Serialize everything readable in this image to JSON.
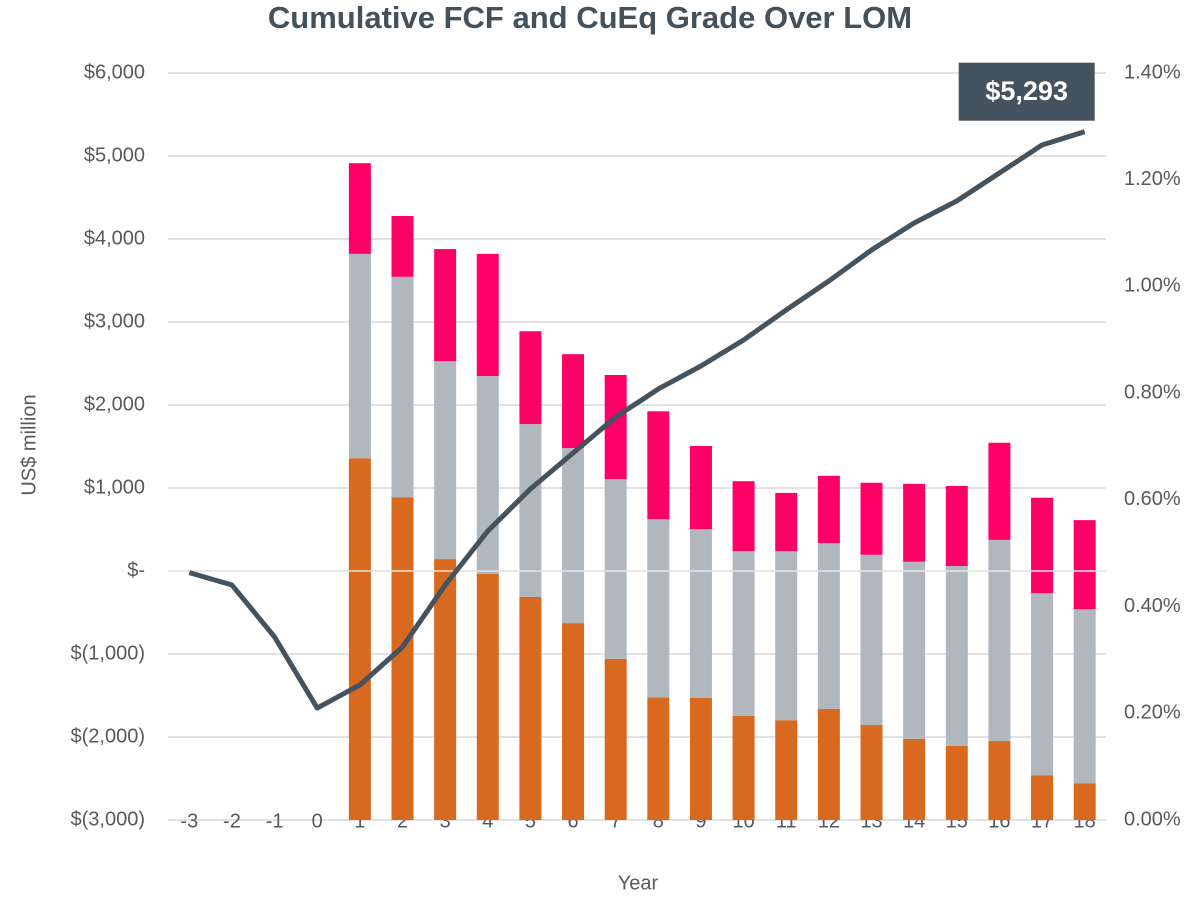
{
  "chart_data": {
    "type": "bar+line",
    "title": "Cumulative FCF and CuEq Grade Over LOM",
    "ylabel": "US$ million",
    "xlabel": "Year",
    "categories": [
      "-3",
      "-2",
      "-1",
      "0",
      "1",
      "2",
      "3",
      "4",
      "5",
      "6",
      "7",
      "8",
      "9",
      "10",
      "11",
      "12",
      "13",
      "14",
      "15",
      "16",
      "17",
      "18"
    ],
    "series": [
      {
        "type": "bar",
        "axis": "y2",
        "color": "#d9691f",
        "values": [
          null,
          null,
          null,
          null,
          0.678,
          0.605,
          0.489,
          0.461,
          0.418,
          0.369,
          0.302,
          0.23,
          0.229,
          0.195,
          0.187,
          0.208,
          0.178,
          0.152,
          0.139,
          0.148,
          0.084,
          0.069
        ]
      },
      {
        "type": "bar",
        "axis": "y2",
        "color": "#b0b7bd",
        "values": [
          null,
          null,
          null,
          null,
          0.383,
          0.413,
          0.371,
          0.371,
          0.324,
          0.328,
          0.337,
          0.334,
          0.316,
          0.309,
          0.317,
          0.311,
          0.319,
          0.332,
          0.337,
          0.377,
          0.341,
          0.326
        ]
      },
      {
        "type": "bar",
        "axis": "y2",
        "color": "#ff0066",
        "values": [
          null,
          null,
          null,
          null,
          0.17,
          0.114,
          0.21,
          0.229,
          0.174,
          0.176,
          0.195,
          0.202,
          0.156,
          0.131,
          0.109,
          0.126,
          0.135,
          0.146,
          0.15,
          0.182,
          0.179,
          0.167
        ]
      },
      {
        "type": "line",
        "color": "#44535e",
        "values": [
          -20,
          -169,
          -795,
          -1651,
          -1373,
          -916,
          -169,
          482,
          988,
          1422,
          1855,
          2193,
          2470,
          2783,
          3145,
          3494,
          3867,
          4193,
          4458,
          4795,
          5133,
          5293
        ],
        "value_labels": [
          null,
          null,
          null,
          null,
          null,
          null,
          null,
          null,
          null,
          null,
          null,
          null,
          null,
          null,
          null,
          null,
          null,
          null,
          null,
          null,
          null,
          "$5,293"
        ]
      }
    ],
    "ylim": [
      -3000,
      6000
    ],
    "yticks": [
      {
        "value": -3000,
        "label": "$(3,000)"
      },
      {
        "value": -2000,
        "label": "$(2,000)"
      },
      {
        "value": -1000,
        "label": "$(1,000)"
      },
      {
        "value": 0,
        "label": "$-"
      },
      {
        "value": 1000,
        "label": "$1,000"
      },
      {
        "value": 2000,
        "label": "$2,000"
      },
      {
        "value": 3000,
        "label": "$3,000"
      },
      {
        "value": 4000,
        "label": "$4,000"
      },
      {
        "value": 5000,
        "label": "$5,000"
      },
      {
        "value": 6000,
        "label": "$6,000"
      }
    ],
    "y2lim": [
      0,
      1.4
    ],
    "y2ticks": [
      {
        "value": 0,
        "label": "0.00%"
      },
      {
        "value": 0.2,
        "label": "0.20%"
      },
      {
        "value": 0.4,
        "label": "0.40%"
      },
      {
        "value": 0.6,
        "label": "0.60%"
      },
      {
        "value": 0.8,
        "label": "0.80%"
      },
      {
        "value": 1.0,
        "label": "1.00%"
      },
      {
        "value": 1.2,
        "label": "1.20%"
      },
      {
        "value": 1.4,
        "label": "1.40%"
      }
    ],
    "grid": true
  }
}
